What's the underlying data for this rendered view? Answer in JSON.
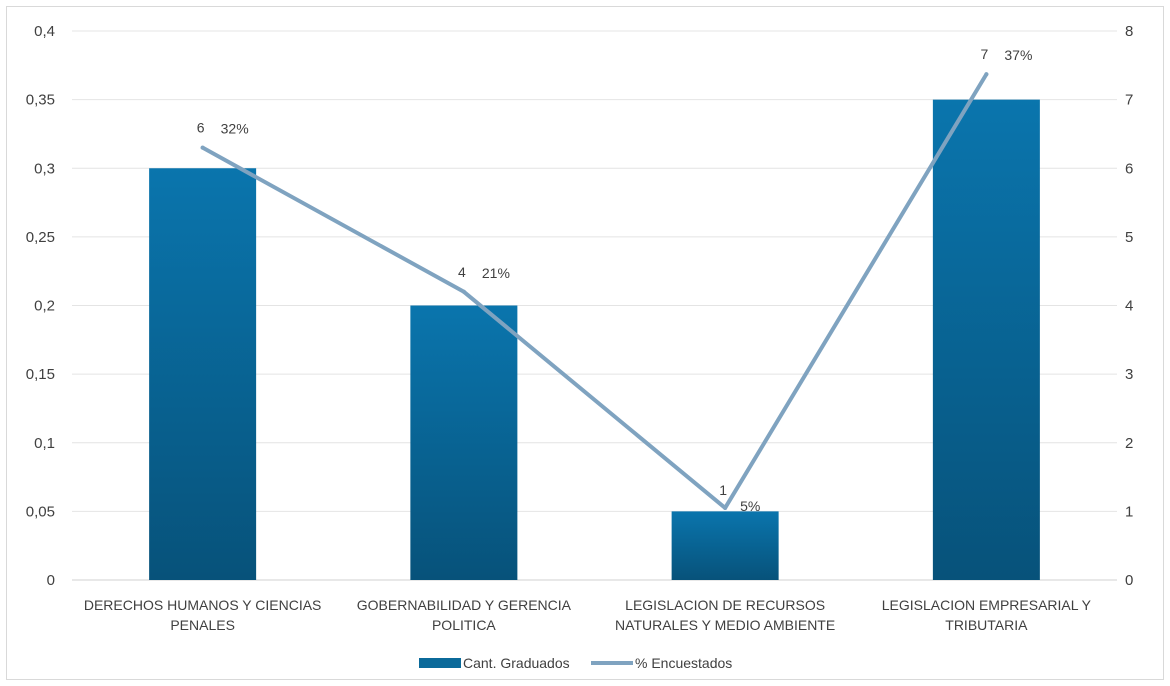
{
  "chart_data": {
    "type": "bar",
    "categories": [
      [
        "DERECHOS HUMANOS Y CIENCIAS",
        "PENALES"
      ],
      [
        "GOBERNABILIDAD Y GERENCIA",
        "POLITICA"
      ],
      [
        "LEGISLACION DE RECURSOS",
        "NATURALES Y MEDIO AMBIENTE"
      ],
      [
        "LEGISLACION EMPRESARIAL Y",
        "TRIBUTARIA"
      ]
    ],
    "series": [
      {
        "name": "Cant. Graduados",
        "kind": "bar",
        "axis": "left",
        "values": [
          0.3,
          0.2,
          0.05,
          0.35
        ],
        "labels": [
          "6",
          "4",
          "1",
          "7"
        ],
        "color": "#0b6a9a"
      },
      {
        "name": "% Encuestados",
        "kind": "line",
        "axis": "right",
        "values": [
          6.3,
          4.2,
          1.05,
          7.37
        ],
        "labels": [
          "32%",
          "21%",
          "5%",
          "37%"
        ],
        "color": "#7fa3c0"
      }
    ],
    "y_left": {
      "range": [
        0,
        0.4
      ],
      "ticks": [
        "0",
        "0,05",
        "0,1",
        "0,15",
        "0,2",
        "0,25",
        "0,3",
        "0,35",
        "0,4"
      ]
    },
    "y_right": {
      "range": [
        0,
        8
      ],
      "ticks": [
        "0",
        "1",
        "2",
        "3",
        "4",
        "5",
        "6",
        "7",
        "8"
      ]
    },
    "grid": true,
    "legend": "bottom"
  }
}
